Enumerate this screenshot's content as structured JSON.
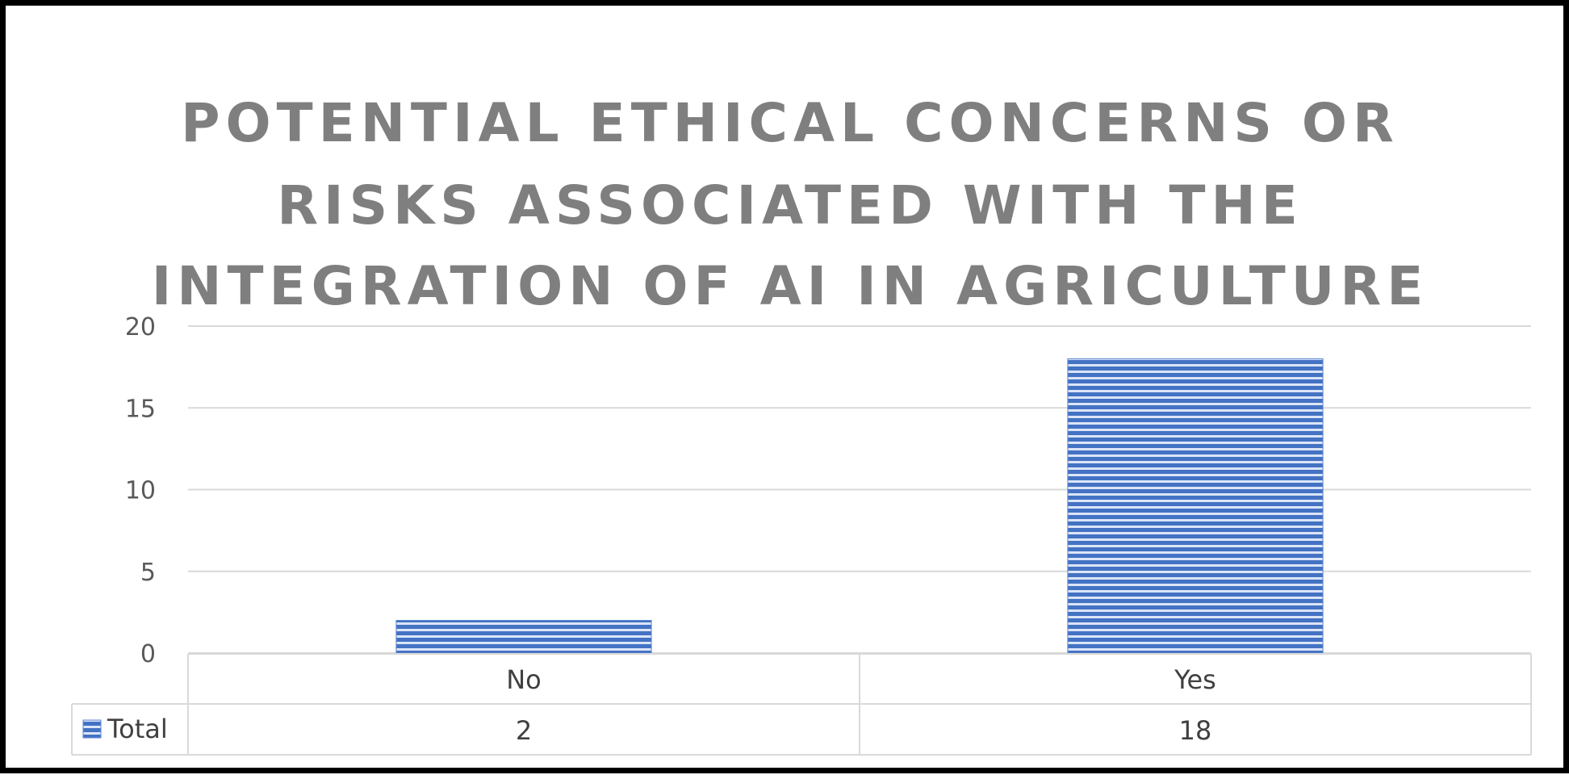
{
  "chart_data": {
    "type": "bar",
    "title_lines": [
      "POTENTIAL ETHICAL CONCERNS OR",
      "RISKS ASSOCIATED WITH THE",
      "INTEGRATION OF AI IN AGRICULTURE"
    ],
    "categories": [
      "No",
      "Yes"
    ],
    "series": [
      {
        "name": "Total",
        "values": [
          2,
          18
        ]
      }
    ],
    "ylim": [
      0,
      20
    ],
    "yticks": [
      0,
      5,
      10,
      15,
      20
    ],
    "grid": true,
    "data_table": true,
    "bar_color": "#4472c4",
    "bar_stripe_color": "#dbe5f7"
  }
}
